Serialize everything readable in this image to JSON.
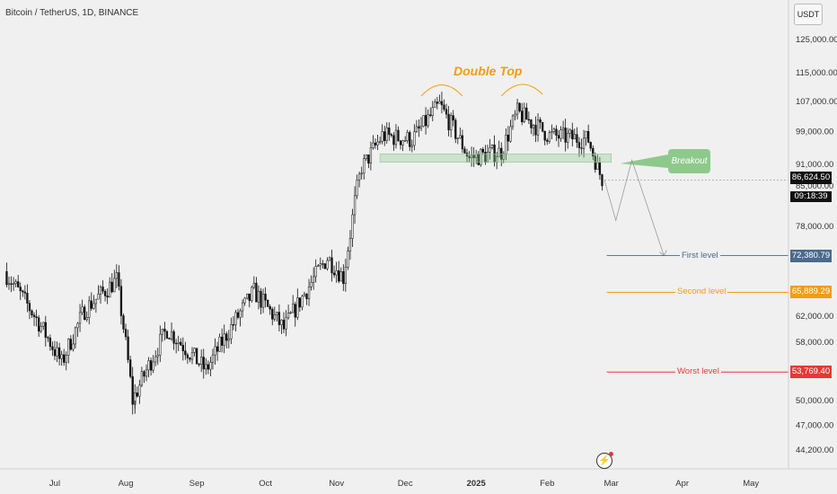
{
  "header": {
    "symbol_title": "Bitcoin / TetherUS, 1D, BINANCE",
    "currency": "USDT"
  },
  "badges": {
    "current_price": "86,624.50",
    "timer": "09:18:39",
    "first_price": "72,380.79",
    "second_price": "65,889.29",
    "worst_price": "53,769.40"
  },
  "annotations": {
    "double_top": "Double Top",
    "breakout": "Breakout",
    "first_level": "First level",
    "second_level": "Second level",
    "worst_level": "Worst level"
  },
  "colors": {
    "up": "#111111",
    "down": "#111111",
    "first": "#4a6a8e",
    "second": "#f39c12",
    "worst": "#e53935",
    "zone": "#8ec98c",
    "double_top": "#f39c12"
  },
  "icons": [
    "lightning-icon"
  ],
  "chart_data": {
    "type": "candlestick",
    "title": "Bitcoin / TetherUS, 1D, BINANCE",
    "y_scale": "log",
    "y_ticks": [
      "125,000.00",
      "115,000.00",
      "107,000.00",
      "99,000.00",
      "91,000.00",
      "85,000.00",
      "78,000.00",
      "62,000.00",
      "58,000.00",
      "50,000.00",
      "47,000.00",
      "44,200.00"
    ],
    "x_ticks": [
      "Jul",
      "Aug",
      "Sep",
      "Oct",
      "Nov",
      "Dec",
      "2025",
      "Feb",
      "Mar",
      "Apr",
      "May"
    ],
    "anchors": [
      [
        "2024-06-10",
        69500
      ],
      [
        "2024-06-25",
        61000
      ],
      [
        "2024-07-05",
        55000
      ],
      [
        "2024-07-15",
        63000
      ],
      [
        "2024-07-29",
        68000
      ],
      [
        "2024-08-05",
        50000
      ],
      [
        "2024-08-20",
        60000
      ],
      [
        "2024-09-06",
        54000
      ],
      [
        "2024-09-27",
        66000
      ],
      [
        "2024-10-10",
        60000
      ],
      [
        "2024-10-29",
        72000
      ],
      [
        "2024-11-05",
        68500
      ],
      [
        "2024-11-13",
        90000
      ],
      [
        "2024-11-22",
        98000
      ],
      [
        "2024-12-05",
        97000
      ],
      [
        "2024-12-17",
        106000
      ],
      [
        "2024-12-30",
        92500
      ],
      [
        "2025-01-13",
        94000
      ],
      [
        "2025-01-20",
        104000
      ],
      [
        "2025-02-03",
        98000
      ],
      [
        "2025-02-20",
        97000
      ],
      [
        "2025-02-26",
        86600
      ]
    ],
    "levels": [
      {
        "name": "First level",
        "value": 72380.79
      },
      {
        "name": "Second level",
        "value": 65889.29
      },
      {
        "name": "Worst level",
        "value": 53769.4
      }
    ],
    "current_price": 86624.5,
    "breakout_zone": [
      91500,
      93500
    ],
    "projection": [
      [
        "2025-02-26",
        86600
      ],
      [
        "2025-03-03",
        79000
      ],
      [
        "2025-03-10",
        92000
      ],
      [
        "2025-03-24",
        72380.79
      ]
    ],
    "grid": false
  }
}
